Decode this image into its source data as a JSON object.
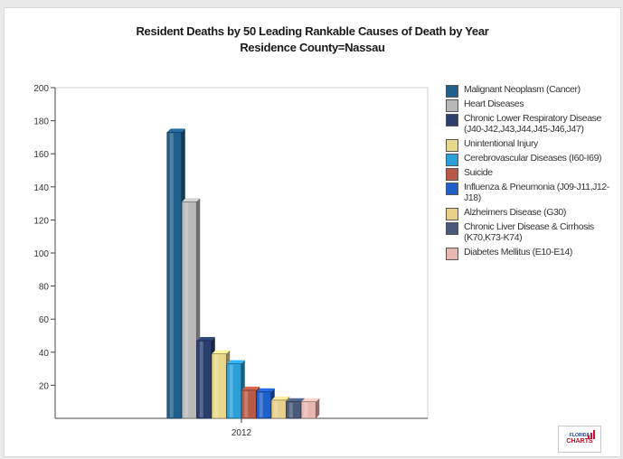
{
  "chart_data": {
    "type": "bar",
    "title": "Resident Deaths  by 50 Leading Rankable Causes of Death  by Year",
    "subtitle": "Residence County=Nassau",
    "categories": [
      "2012"
    ],
    "ylim": [
      0,
      200
    ],
    "yticks": [
      20,
      40,
      60,
      80,
      100,
      120,
      140,
      160,
      180,
      200
    ],
    "grid": false,
    "legend_position": "right",
    "series": [
      {
        "name": "Malignant Neoplasm (Cancer)",
        "values": [
          173
        ],
        "color": "#1f5f8b"
      },
      {
        "name": "Heart Diseases",
        "values": [
          131
        ],
        "color": "#b8b8b8"
      },
      {
        "name": "Chronic Lower Respiratory Disease (J40-J42,J43,J44,J45-J46,J47)",
        "values": [
          47
        ],
        "color": "#2a3f6e"
      },
      {
        "name": "Unintentional Injury",
        "values": [
          39
        ],
        "color": "#e8d88a"
      },
      {
        "name": "Cerebrovascular Diseases (I60-I69)",
        "values": [
          33
        ],
        "color": "#2a9fd8"
      },
      {
        "name": "Suicide",
        "values": [
          17
        ],
        "color": "#b85a45"
      },
      {
        "name": "Influenza & Pneumonia (J09-J11,J12-J18)",
        "values": [
          16
        ],
        "color": "#1f5fc8"
      },
      {
        "name": "Alzheimers Disease (G30)",
        "values": [
          11
        ],
        "color": "#e8cf8a"
      },
      {
        "name": "Chronic Liver Disease & Cirrhosis (K70,K73-K74)",
        "values": [
          10
        ],
        "color": "#4a5a7a"
      },
      {
        "name": "Diabetes Mellitus (E10-E14)",
        "values": [
          10
        ],
        "color": "#e8b8b0"
      }
    ]
  },
  "logo": {
    "line1": "FLORIDA",
    "line2": "CHARTS"
  }
}
